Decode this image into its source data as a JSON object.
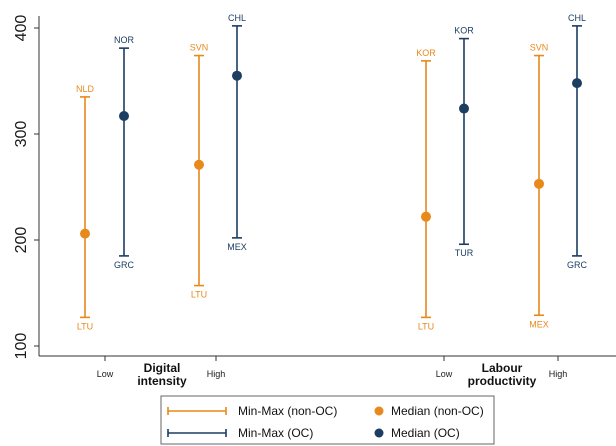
{
  "chart_data": {
    "type": "range",
    "title": "",
    "xlabel": "",
    "ylabel": "",
    "ylim": [
      95,
      412
    ],
    "yticks": [
      100,
      200,
      300,
      400
    ],
    "grid": false,
    "colors": {
      "non_oc": "#e8891c",
      "oc": "#1c3e63"
    },
    "groups": [
      {
        "label_lines": [
          "Digital",
          "intensity"
        ],
        "items": [
          {
            "category": "Low",
            "series": "non-OC",
            "min": 127,
            "max": 335,
            "median": 206,
            "min_label": "LTU",
            "max_label": "NLD"
          },
          {
            "category": "Low",
            "series": "OC",
            "min": 185,
            "max": 381,
            "median": 317,
            "min_label": "GRC",
            "max_label": "NOR"
          },
          {
            "category": "High",
            "series": "non-OC",
            "min": 157,
            "max": 374,
            "median": 271,
            "min_label": "LTU",
            "max_label": "SVN"
          },
          {
            "category": "High",
            "series": "OC",
            "min": 202,
            "max": 402,
            "median": 355,
            "min_label": "MEX",
            "max_label": "CHL"
          }
        ]
      },
      {
        "label_lines": [
          "Labour",
          "productivity"
        ],
        "items": [
          {
            "category": "Low",
            "series": "non-OC",
            "min": 127,
            "max": 369,
            "median": 222,
            "min_label": "LTU",
            "max_label": "KOR"
          },
          {
            "category": "Low",
            "series": "OC",
            "min": 196,
            "max": 390,
            "median": 324,
            "min_label": "TUR",
            "max_label": "KOR"
          },
          {
            "category": "High",
            "series": "non-OC",
            "min": 129,
            "max": 374,
            "median": 253,
            "min_label": "MEX",
            "max_label": "SVN"
          },
          {
            "category": "High",
            "series": "OC",
            "min": 185,
            "max": 402,
            "median": 348,
            "min_label": "GRC",
            "max_label": "CHL"
          }
        ]
      }
    ],
    "legend": {
      "position": "bottom",
      "entries": [
        {
          "label": "Min-Max (non-OC)",
          "marker": "range",
          "color": "#e8891c"
        },
        {
          "label": "Median (non-OC)",
          "marker": "dot",
          "color": "#e8891c"
        },
        {
          "label": "Min-Max (OC)",
          "marker": "range",
          "color": "#1c3e63"
        },
        {
          "label": "Median (OC)",
          "marker": "dot",
          "color": "#1c3e63"
        }
      ]
    }
  }
}
